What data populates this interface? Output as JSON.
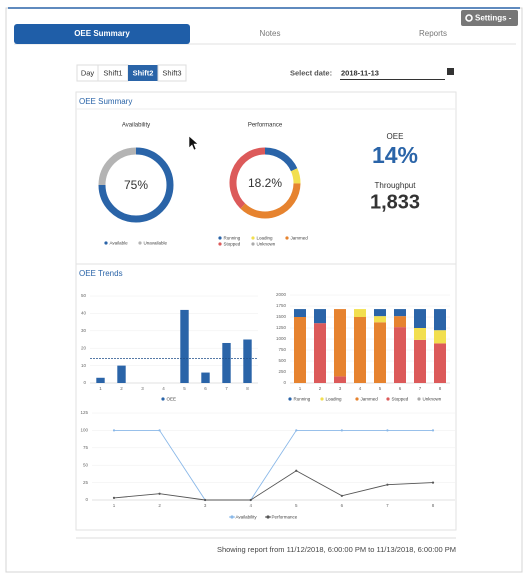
{
  "header": {
    "settings": "Settings -"
  },
  "tabs": [
    "OEE Summary",
    "Notes",
    "Reports"
  ],
  "shifts": [
    "Day",
    "Shift1",
    "Shift2",
    "Shift3"
  ],
  "date_label": "Select date:",
  "date_value": "2018-11-13",
  "summary": {
    "title": "OEE Summary",
    "oee_label": "OEE",
    "oee_value": "14%",
    "throughput_label": "Throughput",
    "throughput_value": "1,833"
  },
  "trends": {
    "title": "OEE Trends"
  },
  "footer": "Showing report from 11/12/2018, 6:00:00 PM to 11/13/2018, 6:00:00 PM",
  "chart_data": [
    {
      "type": "donut",
      "title": "Availability",
      "center_label": "75%",
      "categories": [
        "Available",
        "Unavailable"
      ],
      "values": [
        75,
        25
      ],
      "colors": [
        "#2a64a8",
        "#b4b4b4"
      ]
    },
    {
      "type": "donut",
      "title": "Performance",
      "center_label": "18.2%",
      "categories": [
        "Running",
        "Loading",
        "Jammed",
        "Stopped",
        "Unknown"
      ],
      "values": [
        18.2,
        7,
        37,
        37.8,
        0
      ],
      "colors": [
        "#2a64a8",
        "#f2df4f",
        "#e6832f",
        "#dc5a5a",
        "#aaaaaa"
      ]
    },
    {
      "type": "bar",
      "categories": [
        "1",
        "2",
        "3",
        "4",
        "5",
        "6",
        "7",
        "8"
      ],
      "series": [
        {
          "name": "OEE",
          "color": "#2a64a8",
          "values": [
            3,
            10,
            0,
            0,
            42,
            6,
            23,
            25
          ]
        }
      ],
      "reference_line": 14,
      "ylim": [
        0,
        50
      ],
      "yticks": [
        0,
        10,
        20,
        30,
        40,
        50
      ],
      "grid": true
    },
    {
      "type": "stacked_bar",
      "categories": [
        "1",
        "2",
        "3",
        "4",
        "5",
        "6",
        "7",
        "8"
      ],
      "series": [
        {
          "name": "Running",
          "color": "#2a64a8",
          "values": [
            180,
            320,
            0,
            0,
            160,
            160,
            430,
            480
          ]
        },
        {
          "name": "Loading",
          "color": "#f2df4f",
          "values": [
            0,
            0,
            0,
            180,
            140,
            0,
            270,
            300
          ]
        },
        {
          "name": "Jammed",
          "color": "#e6832f",
          "values": [
            1500,
            0,
            1530,
            1500,
            1380,
            250,
            0,
            0
          ]
        },
        {
          "name": "Stopped",
          "color": "#dc5a5a",
          "values": [
            0,
            1360,
            150,
            0,
            0,
            1270,
            980,
            900
          ]
        },
        {
          "name": "Unknown",
          "color": "#aaaaaa",
          "values": [
            0,
            0,
            0,
            0,
            0,
            0,
            0,
            0
          ]
        }
      ],
      "ylim": [
        0,
        2000
      ],
      "yticks": [
        0,
        250,
        500,
        750,
        1000,
        1250,
        1500,
        1750,
        2000
      ],
      "grid": true
    },
    {
      "type": "line",
      "categories": [
        "1",
        "2",
        "3",
        "4",
        "5",
        "6",
        "7",
        "8"
      ],
      "series": [
        {
          "name": "Availability",
          "color": "#8ab8e8",
          "values": [
            100,
            100,
            0,
            0,
            100,
            100,
            100,
            100
          ]
        },
        {
          "name": "Performance",
          "color": "#555555",
          "values": [
            3,
            9,
            0,
            0,
            42,
            6,
            22,
            25
          ]
        }
      ],
      "ylim": [
        0,
        125
      ],
      "yticks": [
        0,
        25,
        50,
        75,
        100,
        125
      ],
      "grid": true
    }
  ]
}
